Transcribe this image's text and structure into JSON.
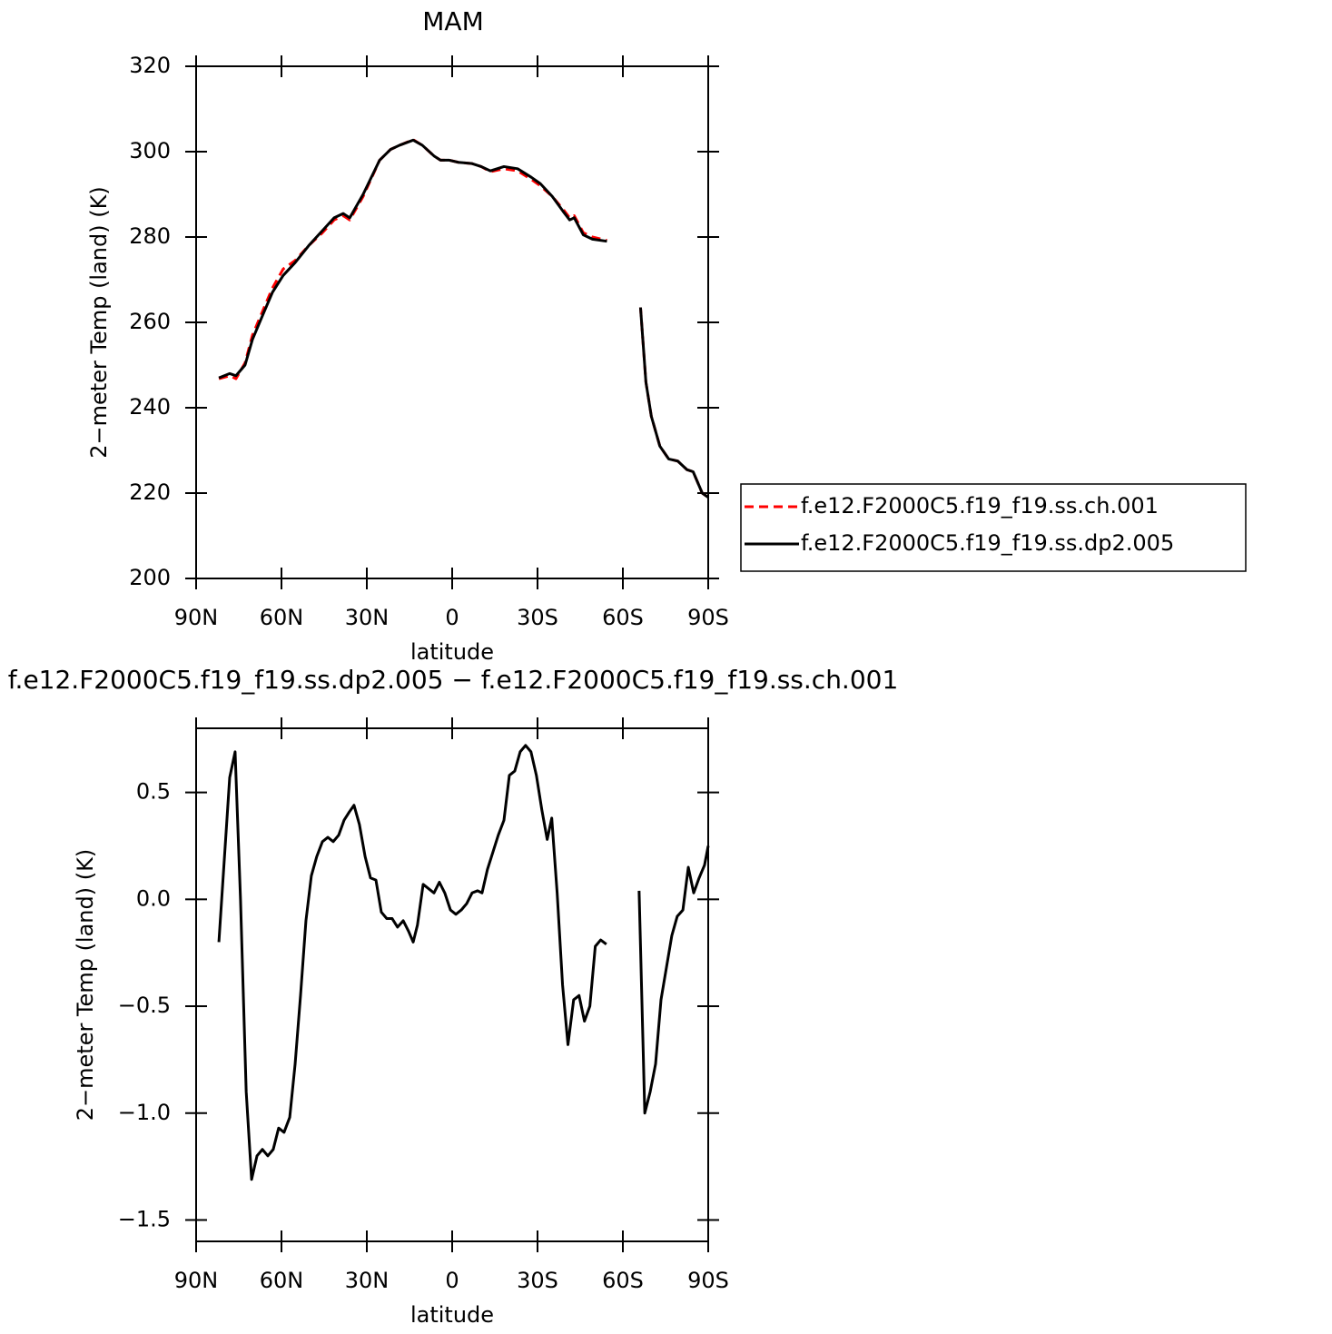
{
  "chart_data": [
    {
      "type": "line",
      "title": "MAM",
      "xlabel": "latitude",
      "ylabel": "2−meter Temp (land) (K)",
      "x": [
        82,
        78.2,
        76,
        72.8,
        70.2,
        66.4,
        63.2,
        59.4,
        55.2,
        50.4,
        45.6,
        41.5,
        38.3,
        36,
        31.3,
        25.5,
        21.7,
        18.5,
        13.7,
        10.5,
        6.4,
        4.1,
        1,
        -2.2,
        -7,
        -10.2,
        -13.4,
        -18.2,
        -23,
        -27.8,
        -31,
        -35.2,
        -39,
        -41.3,
        -42.9,
        -46.1,
        -49.3,
        -54.4,
        -60,
        -66.2,
        -68.1,
        -70,
        -73,
        -76.1,
        -79.3,
        -82.5,
        -84.7,
        -87.9,
        -90
      ],
      "series": [
        {
          "name": "f.e12.F2000C5.f19_f19.ss.ch.001",
          "color": "#ff0000",
          "dash": true,
          "values": [
            246.8,
            247.5,
            246.8,
            250.5,
            257,
            263,
            268,
            272.5,
            274.5,
            278,
            281,
            284,
            285,
            284,
            289.5,
            298,
            300.5,
            301.5,
            302.8,
            301.5,
            299,
            298,
            298,
            297.5,
            297.2,
            296.5,
            295.3,
            296,
            295.5,
            293.5,
            292,
            289.5,
            286.5,
            284.5,
            285,
            281,
            280,
            279.2,
            null,
            263.5,
            246,
            238,
            231,
            228,
            227.5,
            225.5,
            225,
            220,
            219
          ]
        },
        {
          "name": "f.e12.F2000C5.f19_f19.ss.dp2.005",
          "color": "#000000",
          "dash": false,
          "values": [
            247,
            248,
            247.5,
            250,
            256,
            262,
            267,
            271,
            274,
            278,
            281.5,
            284.5,
            285.5,
            284.5,
            290,
            298,
            300.5,
            301.5,
            302.7,
            301.5,
            299,
            298,
            298,
            297.5,
            297.2,
            296.5,
            295.5,
            296.5,
            296,
            294,
            292.5,
            289.5,
            286,
            284,
            284.5,
            280.5,
            279.5,
            279,
            null,
            263.5,
            246,
            238,
            231,
            228,
            227.5,
            225.5,
            225,
            220,
            219
          ]
        }
      ],
      "xlim": [
        90,
        -90
      ],
      "ylim": [
        200,
        320
      ],
      "xticks": [
        {
          "value": 90,
          "label": "90N"
        },
        {
          "value": 60,
          "label": "60N"
        },
        {
          "value": 30,
          "label": "30N"
        },
        0,
        {
          "value": -30,
          "label": "30S"
        },
        {
          "value": -60,
          "label": "60S"
        },
        {
          "value": -90,
          "label": "90S"
        }
      ],
      "yticks": [
        200,
        220,
        240,
        260,
        280,
        300,
        320
      ]
    },
    {
      "type": "line",
      "title": "f.e12.F2000C5.f19_f19.ss.dp2.005 − f.e12.F2000C5.f19_f19.ss.ch.001",
      "xlabel": "latitude",
      "ylabel": "2−meter Temp (land) (K)",
      "x": [
        82,
        78.2,
        76.3,
        74.4,
        72.4,
        70.5,
        68.6,
        66.7,
        64.8,
        62.9,
        61,
        59.1,
        57.1,
        55.2,
        53.3,
        51.4,
        49.5,
        47.6,
        45.6,
        43.7,
        41.8,
        39.9,
        38,
        36.1,
        34.5,
        32.6,
        30.6,
        28.7,
        26.8,
        24.9,
        23,
        21.1,
        19.2,
        17.2,
        15.3,
        13.7,
        12.2,
        10.2,
        8.3,
        6.4,
        4.5,
        2.6,
        0.6,
        -1.3,
        -3.2,
        -5.1,
        -7,
        -8.9,
        -10.5,
        -12.4,
        -14.3,
        -16.2,
        -18.2,
        -20.1,
        -22,
        -23.9,
        -25.8,
        -27.7,
        -29.6,
        -31.5,
        -33.4,
        -35,
        -36.9,
        -38.8,
        -40.7,
        -42.7,
        -44.6,
        -46.5,
        -48.4,
        -50.3,
        -52.2,
        -54.2,
        -60,
        -65.7,
        -67.7,
        -69.6,
        -71.5,
        -73.4,
        -75.3,
        -77.2,
        -79.1,
        -81.1,
        -83,
        -84.9,
        -86.8,
        -88.7,
        -90
      ],
      "series": [
        {
          "color": "#000000",
          "dash": false,
          "values": [
            -0.2,
            0.57,
            0.69,
            0.0,
            -0.9,
            -1.31,
            -1.2,
            -1.17,
            -1.2,
            -1.17,
            -1.07,
            -1.09,
            -1.02,
            -0.77,
            -0.45,
            -0.1,
            0.11,
            0.2,
            0.27,
            0.29,
            0.27,
            0.3,
            0.37,
            0.41,
            0.44,
            0.35,
            0.2,
            0.1,
            0.09,
            -0.06,
            -0.09,
            -0.09,
            -0.13,
            -0.1,
            -0.15,
            -0.2,
            -0.12,
            0.07,
            0.05,
            0.03,
            0.08,
            0.03,
            -0.05,
            -0.07,
            -0.05,
            -0.02,
            0.03,
            0.04,
            0.03,
            0.14,
            0.22,
            0.3,
            0.37,
            0.58,
            0.6,
            0.69,
            0.72,
            0.69,
            0.58,
            0.42,
            0.28,
            0.38,
            0.03,
            -0.4,
            -0.68,
            -0.47,
            -0.45,
            -0.57,
            -0.5,
            -0.22,
            -0.19,
            -0.21,
            null,
            0.04,
            -1.0,
            -0.9,
            -0.77,
            -0.47,
            -0.32,
            -0.17,
            -0.08,
            -0.05,
            0.15,
            0.03,
            0.1,
            0.16,
            0.25
          ]
        }
      ],
      "xlim": [
        90,
        -90
      ],
      "ylim": [
        -1.6,
        0.8
      ],
      "xticks": [
        {
          "value": 90,
          "label": "90N"
        },
        {
          "value": 60,
          "label": "60N"
        },
        {
          "value": 30,
          "label": "30N"
        },
        0,
        {
          "value": -30,
          "label": "30S"
        },
        {
          "value": -60,
          "label": "60S"
        },
        {
          "value": -90,
          "label": "90S"
        }
      ],
      "yticks": [
        {
          "value": -1.5,
          "label": "−1.5"
        },
        {
          "value": -1,
          "label": "−1.0"
        },
        {
          "value": -0.5,
          "label": "−0.5"
        },
        {
          "value": 0,
          "label": "0.0"
        },
        0.5
      ]
    }
  ]
}
